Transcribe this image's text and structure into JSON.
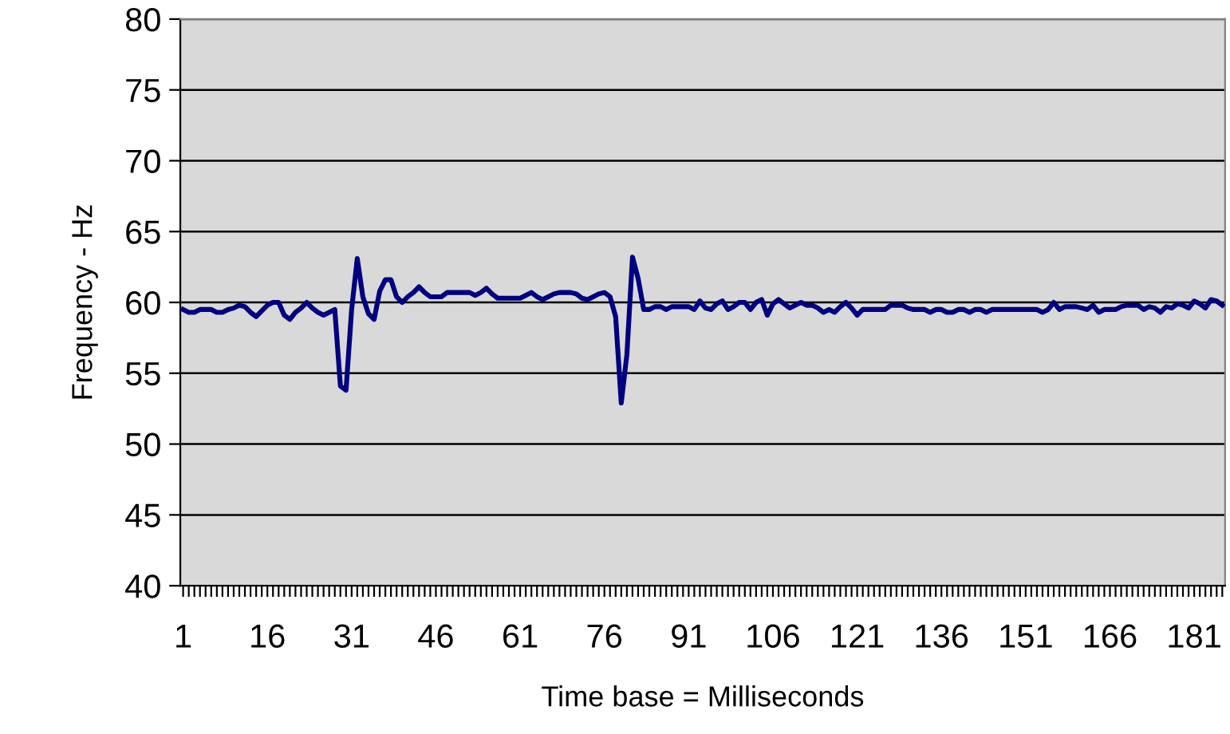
{
  "chart_data": {
    "type": "line",
    "xlabel": "Time base = Milliseconds",
    "ylabel": "Frequency - Hz",
    "categories": [
      "1",
      null,
      null,
      null,
      null,
      null,
      null,
      null,
      null,
      null,
      null,
      null,
      null,
      null,
      null,
      "16",
      null,
      null,
      null,
      null,
      null,
      null,
      null,
      null,
      null,
      null,
      null,
      null,
      null,
      null,
      "31",
      null,
      null,
      null,
      null,
      null,
      null,
      null,
      null,
      null,
      null,
      null,
      null,
      null,
      null,
      "46",
      null,
      null,
      null,
      null,
      null,
      null,
      null,
      null,
      null,
      null,
      null,
      null,
      null,
      null,
      "61",
      null,
      null,
      null,
      null,
      null,
      null,
      null,
      null,
      null,
      null,
      null,
      null,
      null,
      null,
      "76",
      null,
      null,
      null,
      null,
      null,
      null,
      null,
      null,
      null,
      null,
      null,
      null,
      null,
      null,
      "91",
      null,
      null,
      null,
      null,
      null,
      null,
      null,
      null,
      null,
      null,
      null,
      null,
      null,
      null,
      "106",
      null,
      null,
      null,
      null,
      null,
      null,
      null,
      null,
      null,
      null,
      null,
      null,
      null,
      null,
      "121",
      null,
      null,
      null,
      null,
      null,
      null,
      null,
      null,
      null,
      null,
      null,
      null,
      null,
      null,
      "136",
      null,
      null,
      null,
      null,
      null,
      null,
      null,
      null,
      null,
      null,
      null,
      null,
      null,
      null,
      "151",
      null,
      null,
      null,
      null,
      null,
      null,
      null,
      null,
      null,
      null,
      null,
      null,
      null,
      null,
      "166",
      null,
      null,
      null,
      null,
      null,
      null,
      null,
      null,
      null,
      null,
      null,
      null,
      null,
      null,
      "181",
      null,
      null,
      null,
      null,
      null
    ],
    "series": [
      {
        "color": "#000080",
        "values": [
          59.5,
          59.3,
          59.3,
          59.5,
          59.5,
          59.5,
          59.3,
          59.3,
          59.5,
          59.6,
          59.8,
          59.7,
          59.3,
          59.0,
          59.4,
          59.8,
          60.0,
          60.0,
          59.1,
          58.8,
          59.3,
          59.6,
          60.0,
          59.6,
          59.3,
          59.1,
          59.3,
          59.5,
          54.1,
          53.8,
          59.5,
          63.1,
          60.4,
          59.2,
          58.8,
          60.8,
          61.6,
          61.6,
          60.4,
          60.0,
          60.4,
          60.7,
          61.1,
          60.7,
          60.4,
          60.4,
          60.4,
          60.7,
          60.7,
          60.7,
          60.7,
          60.7,
          60.5,
          60.7,
          61.0,
          60.6,
          60.3,
          60.3,
          60.3,
          60.3,
          60.3,
          60.5,
          60.7,
          60.4,
          60.2,
          60.4,
          60.6,
          60.7,
          60.7,
          60.7,
          60.6,
          60.3,
          60.2,
          60.4,
          60.6,
          60.7,
          60.4,
          59.0,
          52.9,
          56.3,
          63.2,
          61.7,
          59.5,
          59.5,
          59.7,
          59.7,
          59.5,
          59.7,
          59.7,
          59.7,
          59.7,
          59.5,
          60.1,
          59.6,
          59.5,
          59.9,
          60.1,
          59.5,
          59.7,
          60.0,
          60.0,
          59.5,
          60.0,
          60.2,
          59.1,
          59.9,
          60.2,
          59.9,
          59.6,
          59.8,
          60.0,
          59.8,
          59.8,
          59.6,
          59.3,
          59.5,
          59.3,
          59.7,
          60.0,
          59.6,
          59.1,
          59.5,
          59.5,
          59.5,
          59.5,
          59.5,
          59.8,
          59.8,
          59.8,
          59.6,
          59.5,
          59.5,
          59.5,
          59.3,
          59.5,
          59.5,
          59.3,
          59.3,
          59.5,
          59.5,
          59.3,
          59.5,
          59.5,
          59.3,
          59.5,
          59.5,
          59.5,
          59.5,
          59.5,
          59.5,
          59.5,
          59.5,
          59.5,
          59.3,
          59.5,
          60.0,
          59.5,
          59.7,
          59.7,
          59.7,
          59.6,
          59.5,
          59.8,
          59.3,
          59.5,
          59.5,
          59.5,
          59.7,
          59.8,
          59.8,
          59.8,
          59.5,
          59.7,
          59.6,
          59.3,
          59.7,
          59.6,
          59.9,
          59.8,
          59.6,
          60.1,
          59.9,
          59.6,
          60.2,
          60.1,
          59.8
        ]
      }
    ],
    "ylim": [
      40,
      80
    ],
    "yticks": [
      40,
      45,
      50,
      55,
      60,
      65,
      70,
      75,
      80
    ],
    "grid": "y",
    "marker": "none",
    "line_style": "solid"
  }
}
